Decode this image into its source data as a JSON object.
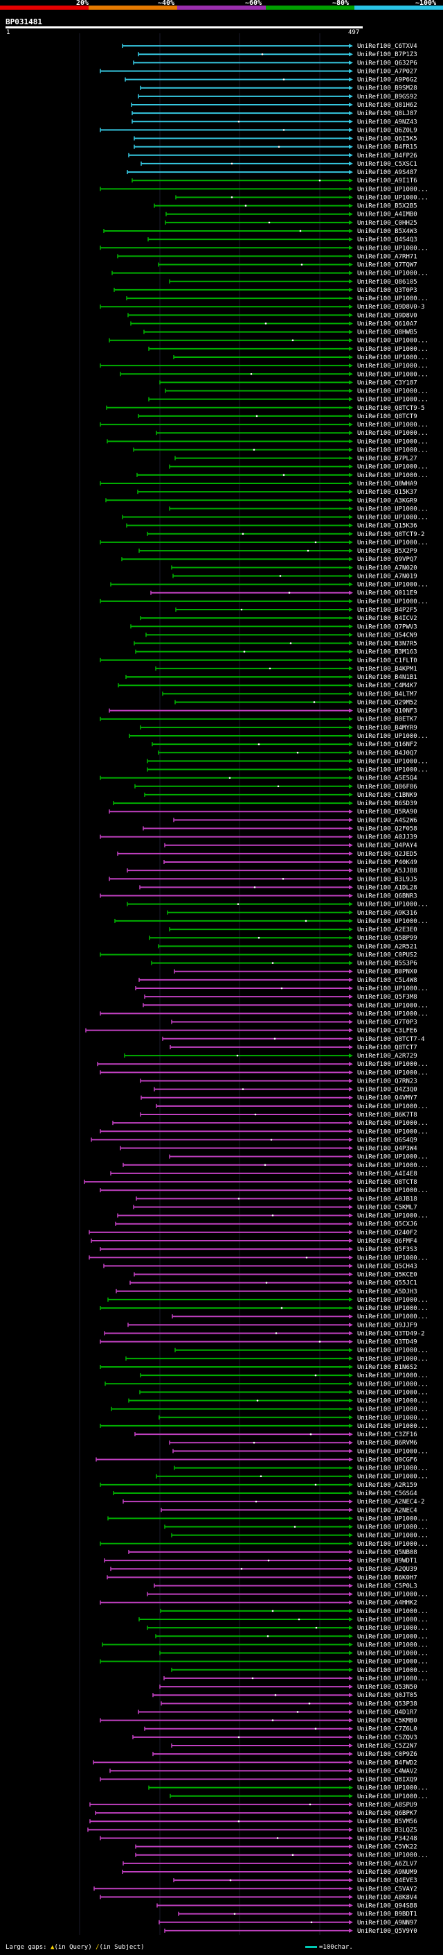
{
  "query": {
    "id": "BP031481",
    "start": "1",
    "end": "497"
  },
  "legend": [
    {
      "label": "20%",
      "color": "#e60000"
    },
    {
      "label": "~40%",
      "color": "#e67a00"
    },
    {
      "label": "~60%",
      "color": "#9b2fae"
    },
    {
      "label": "~80%",
      "color": "#00a000"
    },
    {
      "label": "~100%",
      "color": "#29c4e6"
    }
  ],
  "colors": {
    "cyan": "#36c7e0",
    "green": "#00b000",
    "magenta": "#c040c0",
    "gap": "#ffd800"
  },
  "hits": [
    [
      "C6TXV4",
      "c"
    ],
    [
      "B7P1Z3",
      "c"
    ],
    [
      "Q632P6",
      "c"
    ],
    [
      "A7P027",
      "c"
    ],
    [
      "A9P6G2",
      "c"
    ],
    [
      "B9SM28",
      "c"
    ],
    [
      "B9GS92",
      "c"
    ],
    [
      "Q81H62",
      "c"
    ],
    [
      "Q8LJ87",
      "c"
    ],
    [
      "A9NZ43",
      "c"
    ],
    [
      "Q6Z0L9",
      "c"
    ],
    [
      "Q6I5K5",
      "c"
    ],
    [
      "B4FR15",
      "c"
    ],
    [
      "B4FP26",
      "c"
    ],
    [
      "C5XSC1",
      "c"
    ],
    [
      "A9S487",
      "c"
    ],
    [
      "A9I1T6",
      "g"
    ],
    [
      "UP1000...",
      "g"
    ],
    [
      "UP1000...",
      "g"
    ],
    [
      "B5X2B5",
      "g"
    ],
    [
      "A4IMB0",
      "g"
    ],
    [
      "C0HH25",
      "g"
    ],
    [
      "B5X4W3",
      "g"
    ],
    [
      "Q4S4Q3",
      "g"
    ],
    [
      "UP1000...",
      "g"
    ],
    [
      "A7RH71",
      "g"
    ],
    [
      "Q7TQW7",
      "g"
    ],
    [
      "UP1000...",
      "g"
    ],
    [
      "Q86105",
      "g"
    ],
    [
      "Q3T0P3",
      "g"
    ],
    [
      "UP1000...",
      "g"
    ],
    [
      "Q9D8V0-3",
      "g"
    ],
    [
      "Q9D8V0",
      "g"
    ],
    [
      "Q610A7",
      "g"
    ],
    [
      "Q8HWB5",
      "g"
    ],
    [
      "UP1000...",
      "g"
    ],
    [
      "UP1000...",
      "g"
    ],
    [
      "UP1000...",
      "g"
    ],
    [
      "UP1000...",
      "g"
    ],
    [
      "UP1000...",
      "g"
    ],
    [
      "C3Y187",
      "g"
    ],
    [
      "UP1000...",
      "g"
    ],
    [
      "UP1000...",
      "g"
    ],
    [
      "Q8TCT9-5",
      "g"
    ],
    [
      "Q8TCT9",
      "g"
    ],
    [
      "UP1000...",
      "g"
    ],
    [
      "UP1000...",
      "g"
    ],
    [
      "UP1000...",
      "g"
    ],
    [
      "UP1000...",
      "g"
    ],
    [
      "B7PL27",
      "g"
    ],
    [
      "UP1000...",
      "g"
    ],
    [
      "UP1000...",
      "g"
    ],
    [
      "Q8WHA9",
      "g"
    ],
    [
      "Q15K37",
      "g"
    ],
    [
      "A3KGR9",
      "g"
    ],
    [
      "UP1000...",
      "g"
    ],
    [
      "UP1000...",
      "g"
    ],
    [
      "Q15K36",
      "g"
    ],
    [
      "Q8TCT9-2",
      "g"
    ],
    [
      "UP1000...",
      "g"
    ],
    [
      "B5X2P9",
      "g"
    ],
    [
      "Q9VPQ7",
      "g"
    ],
    [
      "A7N020",
      "g"
    ],
    [
      "A7N019",
      "g"
    ],
    [
      "UP1000...",
      "g"
    ],
    [
      "Q011E9",
      "m"
    ],
    [
      "UP1000...",
      "g"
    ],
    [
      "B4P2F5",
      "g"
    ],
    [
      "B4ICV2",
      "g"
    ],
    [
      "Q7PWV3",
      "g"
    ],
    [
      "Q54CN9",
      "g"
    ],
    [
      "B3N7R5",
      "g"
    ],
    [
      "B3M163",
      "g"
    ],
    [
      "C1FLT0",
      "g"
    ],
    [
      "B4KPM1",
      "g"
    ],
    [
      "B4N1B1",
      "g"
    ],
    [
      "C4M4K7",
      "g"
    ],
    [
      "B4LTM7",
      "g"
    ],
    [
      "Q29M52",
      "g"
    ],
    [
      "Q10NF3",
      "m"
    ],
    [
      "B0ETK7",
      "g"
    ],
    [
      "B4MYR9",
      "g"
    ],
    [
      "UP1000...",
      "g"
    ],
    [
      "Q16NF2",
      "g"
    ],
    [
      "B4J0Q7",
      "g"
    ],
    [
      "UP1000...",
      "g"
    ],
    [
      "UP1000...",
      "g"
    ],
    [
      "A5E5Q4",
      "g"
    ],
    [
      "Q86F86",
      "g"
    ],
    [
      "C1BNK9",
      "g"
    ],
    [
      "B6SD39",
      "g"
    ],
    [
      "Q5RA90",
      "m"
    ],
    [
      "A4S2W6",
      "m"
    ],
    [
      "Q2F058",
      "m"
    ],
    [
      "A0JJ39",
      "m"
    ],
    [
      "Q4PAY4",
      "m"
    ],
    [
      "Q2JED5",
      "m"
    ],
    [
      "P40K49",
      "m"
    ],
    [
      "A5JJB8",
      "m"
    ],
    [
      "B3L9J5",
      "m"
    ],
    [
      "A1DL28",
      "m"
    ],
    [
      "Q6BNR3",
      "m"
    ],
    [
      "UP1000...",
      "g"
    ],
    [
      "A9K316",
      "g"
    ],
    [
      "UP1000...",
      "g"
    ],
    [
      "A2E3E0",
      "g"
    ],
    [
      "Q5BP99",
      "g"
    ],
    [
      "A2R521",
      "g"
    ],
    [
      "C0PUS2",
      "g"
    ],
    [
      "B5S3P6",
      "g"
    ],
    [
      "B0PNX0",
      "m"
    ],
    [
      "C5L4W8",
      "m"
    ],
    [
      "UP1000...",
      "m"
    ],
    [
      "Q5F3M8",
      "m"
    ],
    [
      "UP1000...",
      "m"
    ],
    [
      "UP1000...",
      "m"
    ],
    [
      "Q7T0P3",
      "m"
    ],
    [
      "C3LFE6",
      "m"
    ],
    [
      "Q8TCT7-4",
      "m"
    ],
    [
      "Q8TCT7",
      "m"
    ],
    [
      "A2R729",
      "g"
    ],
    [
      "UP1000...",
      "m"
    ],
    [
      "UP1000...",
      "m"
    ],
    [
      "Q7RN23",
      "m"
    ],
    [
      "Q4Z3Q0",
      "m"
    ],
    [
      "Q4VMY7",
      "m"
    ],
    [
      "UP1000...",
      "m"
    ],
    [
      "B6K7T8",
      "m"
    ],
    [
      "UP1000...",
      "m"
    ],
    [
      "UP1000...",
      "m"
    ],
    [
      "Q6S4Q9",
      "m"
    ],
    [
      "Q4P3W4",
      "m"
    ],
    [
      "UP1000...",
      "m"
    ],
    [
      "UP1000...",
      "m"
    ],
    [
      "A4I4E8",
      "m"
    ],
    [
      "Q8TCT8",
      "m"
    ],
    [
      "UP1000...",
      "m"
    ],
    [
      "A0JB18",
      "m"
    ],
    [
      "C5KML7",
      "m"
    ],
    [
      "UP1000...",
      "m"
    ],
    [
      "Q5CXJ6",
      "m"
    ],
    [
      "Q240F2",
      "m"
    ],
    [
      "Q6FMF4",
      "m"
    ],
    [
      "Q5F3S3",
      "m"
    ],
    [
      "UP1000...",
      "m"
    ],
    [
      "Q5CH43",
      "m"
    ],
    [
      "Q5KCE0",
      "m"
    ],
    [
      "Q55JC1",
      "m"
    ],
    [
      "A5DJH3",
      "m"
    ],
    [
      "UP1000...",
      "g"
    ],
    [
      "UP1000...",
      "g"
    ],
    [
      "UP1000...",
      "m"
    ],
    [
      "Q9JJF9",
      "m"
    ],
    [
      "Q3TD49-2",
      "m"
    ],
    [
      "Q3TD49",
      "m"
    ],
    [
      "UP1000...",
      "g"
    ],
    [
      "UP1000...",
      "g"
    ],
    [
      "B1N6S2",
      "g"
    ],
    [
      "UP1000...",
      "g"
    ],
    [
      "UP1000...",
      "g"
    ],
    [
      "UP1000...",
      "g"
    ],
    [
      "UP1000...",
      "g"
    ],
    [
      "UP1000...",
      "g"
    ],
    [
      "UP1000...",
      "g"
    ],
    [
      "UP1000...",
      "g"
    ],
    [
      "C3ZF16",
      "m"
    ],
    [
      "B6RVM6",
      "m"
    ],
    [
      "UP1000...",
      "m"
    ],
    [
      "Q0CGF6",
      "m"
    ],
    [
      "UP1000...",
      "g"
    ],
    [
      "UP1000...",
      "g"
    ],
    [
      "A2R159",
      "g"
    ],
    [
      "C5GSG4",
      "g"
    ],
    [
      "A2NEC4-2",
      "m"
    ],
    [
      "A2NEC4",
      "m"
    ],
    [
      "UP1000...",
      "g"
    ],
    [
      "UP1000...",
      "g"
    ],
    [
      "UP1000...",
      "g"
    ],
    [
      "UP1000...",
      "g"
    ],
    [
      "Q5NB08",
      "m"
    ],
    [
      "B9WDT1",
      "m"
    ],
    [
      "A2QU39",
      "m"
    ],
    [
      "B6K0H7",
      "m"
    ],
    [
      "C5P0L3",
      "m"
    ],
    [
      "UP1000...",
      "m"
    ],
    [
      "A4HHK2",
      "m"
    ],
    [
      "UP1000...",
      "g"
    ],
    [
      "UP1000...",
      "g"
    ],
    [
      "UP1000...",
      "g"
    ],
    [
      "UP1000...",
      "g"
    ],
    [
      "UP1000...",
      "g"
    ],
    [
      "UP1000...",
      "g"
    ],
    [
      "UP1000...",
      "g"
    ],
    [
      "UP1000...",
      "g"
    ],
    [
      "UP1000...",
      "m"
    ],
    [
      "Q53N50",
      "m"
    ],
    [
      "Q0JT05",
      "m"
    ],
    [
      "Q53P38",
      "m"
    ],
    [
      "Q4D1R7",
      "m"
    ],
    [
      "C5KMB0",
      "m"
    ],
    [
      "C7Z6L0",
      "m"
    ],
    [
      "C5ZQV3",
      "m"
    ],
    [
      "C5Z2N7",
      "m"
    ],
    [
      "C0P9Z6",
      "m"
    ],
    [
      "B4FWD2",
      "m"
    ],
    [
      "C4WAV2",
      "m"
    ],
    [
      "Q8IXQ9",
      "m"
    ],
    [
      "UP1000...",
      "g"
    ],
    [
      "UP1000...",
      "g"
    ],
    [
      "A8SPU9",
      "m"
    ],
    [
      "Q6BPK7",
      "m"
    ],
    [
      "B5VM56",
      "m"
    ],
    [
      "B3LQZ5",
      "m"
    ],
    [
      "P34248",
      "m"
    ],
    [
      "C5VK22",
      "m"
    ],
    [
      "UP1000...",
      "m"
    ],
    [
      "A6ZLV7",
      "m"
    ],
    [
      "A9NUM9",
      "m"
    ],
    [
      "Q4EVE3",
      "m"
    ],
    [
      "C5VAY2",
      "m"
    ],
    [
      "A8K8V4",
      "m"
    ],
    [
      "Q94SB8",
      "m"
    ],
    [
      "B9BDT1",
      "m"
    ],
    [
      "A9NN97",
      "m"
    ],
    [
      "Q5V9Y0",
      "m"
    ]
  ],
  "footer": {
    "label": "Large gaps:",
    "gap_query_glyph": "▲",
    "gap_query_text": "(in Query)",
    "gap_subject_glyph": "/",
    "gap_subject_text": "(in Subject)",
    "scale_text": "=100char."
  }
}
